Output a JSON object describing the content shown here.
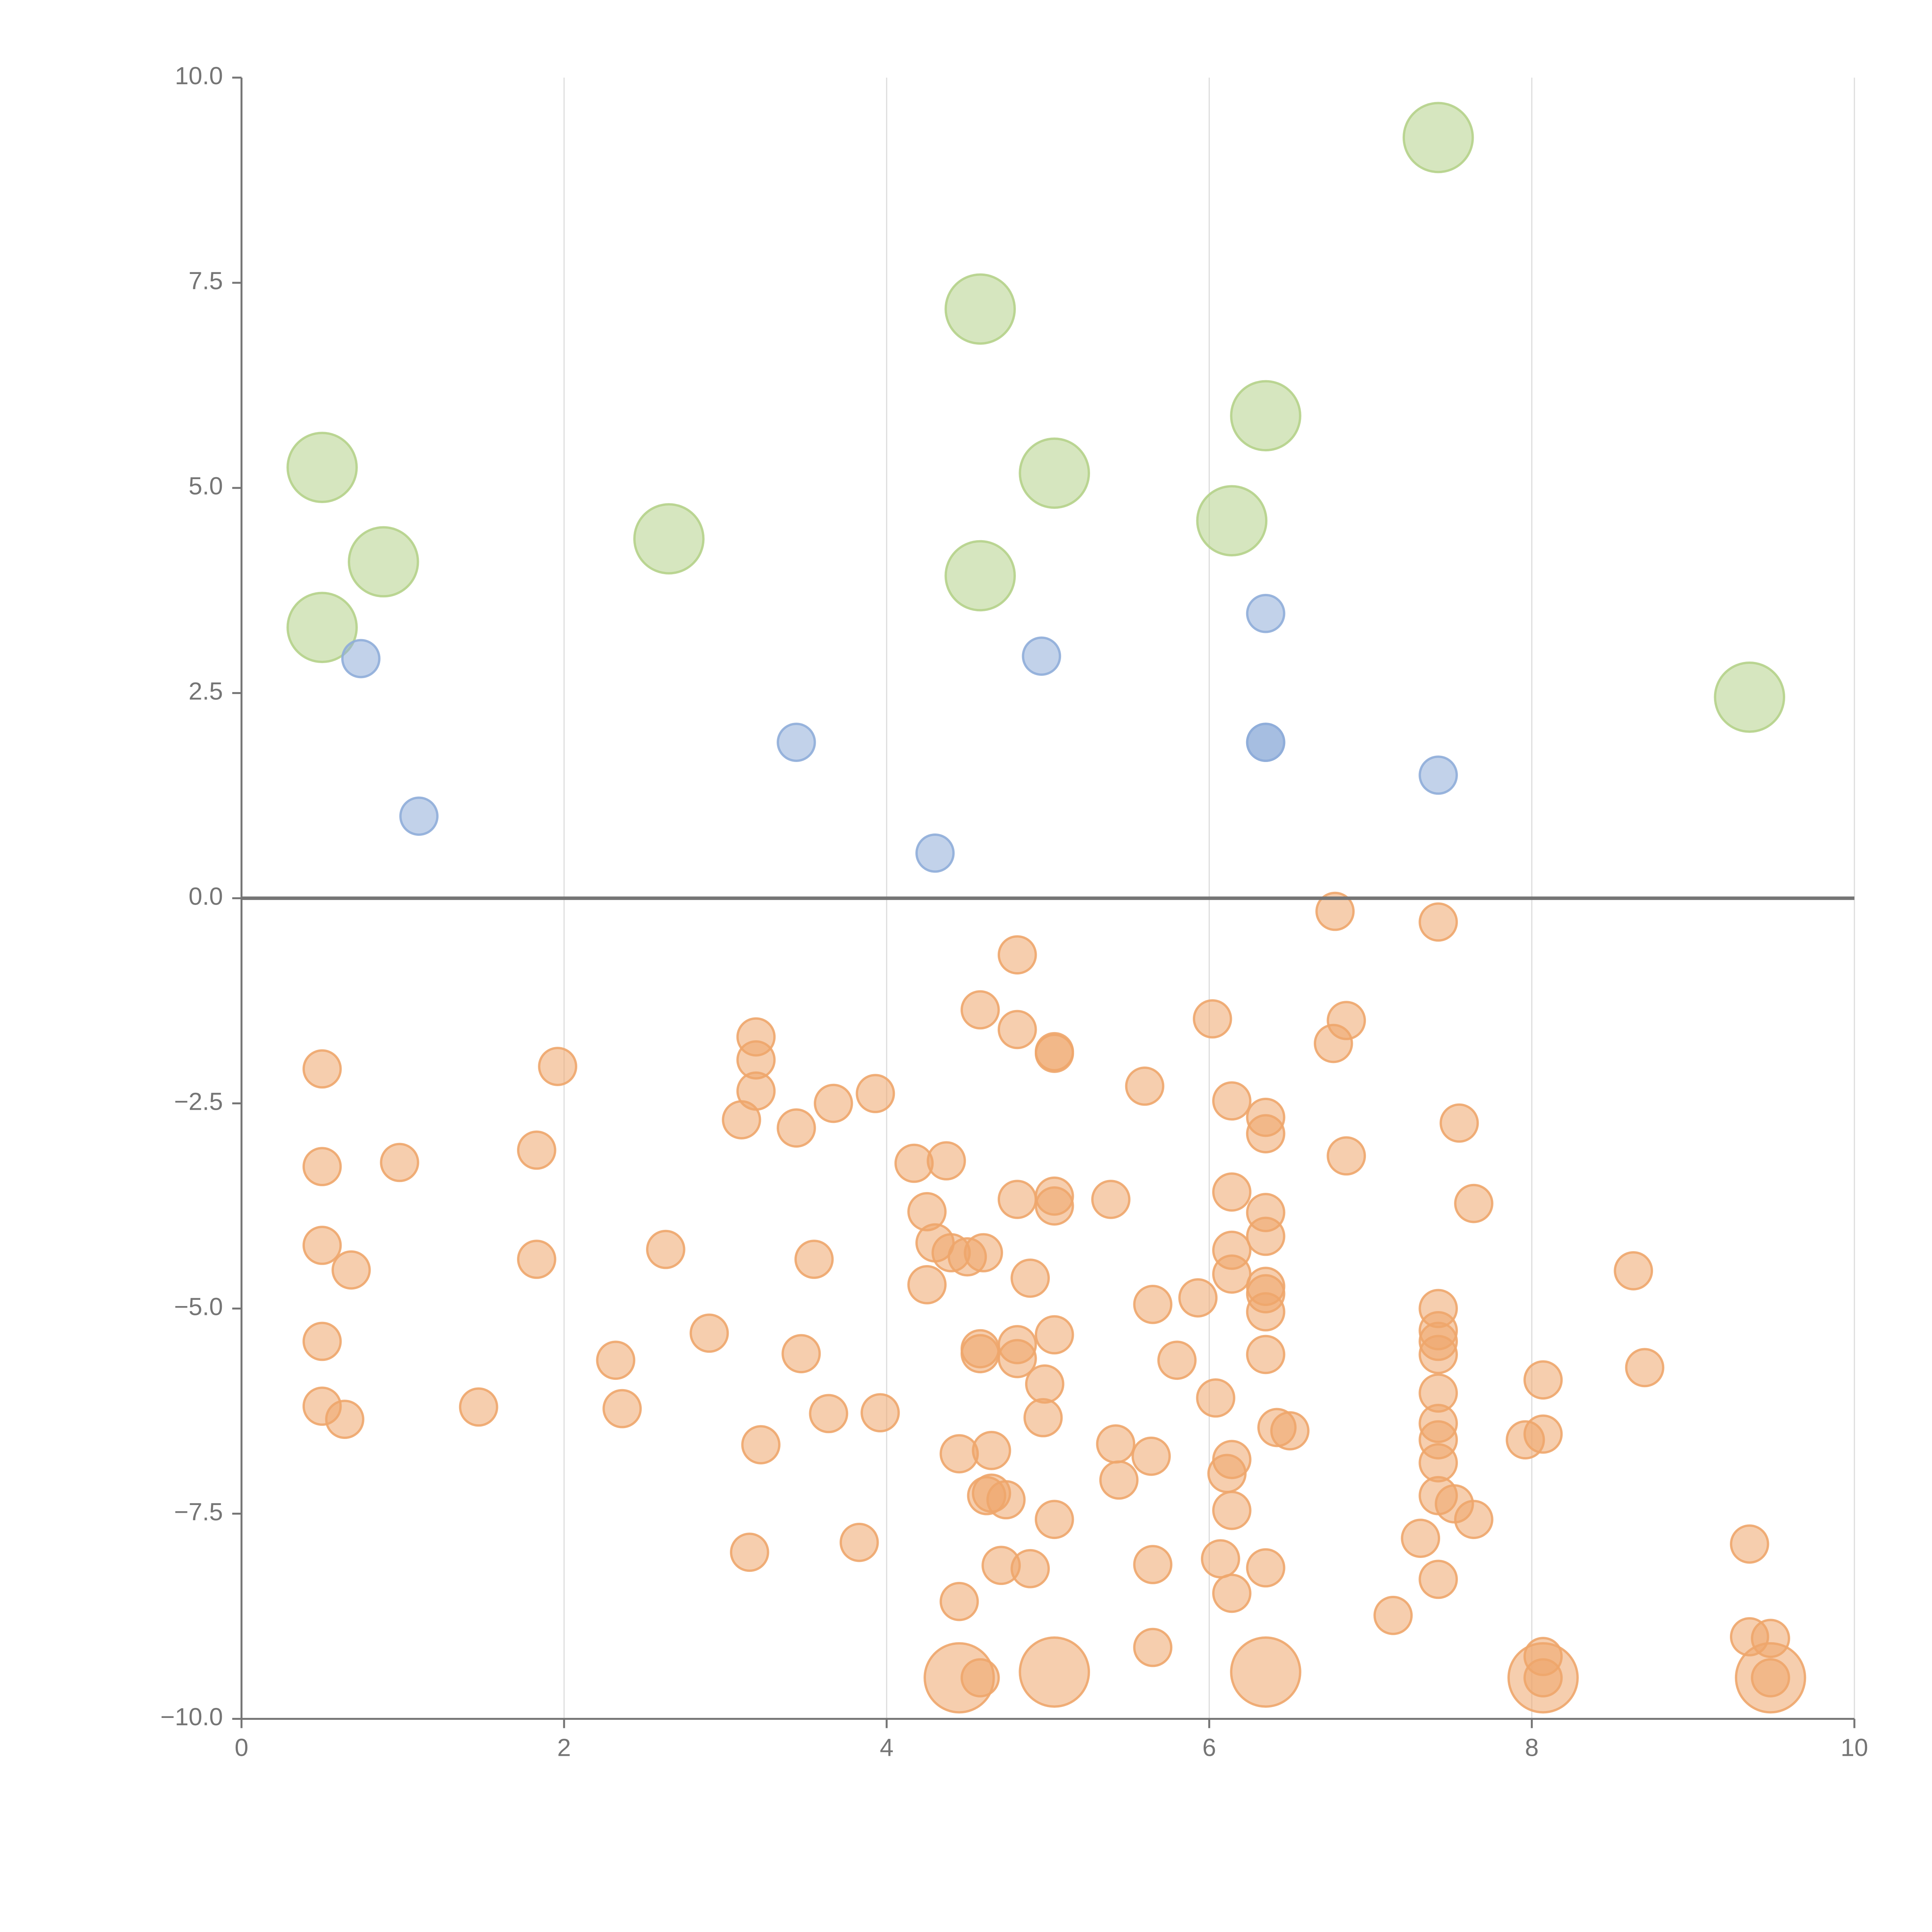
{
  "chart_data": {
    "type": "scatter",
    "title": "",
    "xlabel": "",
    "ylabel": "",
    "xlim": [
      0,
      10
    ],
    "ylim": [
      -10,
      10
    ],
    "x_ticks": [
      0,
      2,
      4,
      6,
      8,
      10
    ],
    "y_ticks": [
      -10.0,
      -7.5,
      -5.0,
      -2.5,
      0.0,
      2.5,
      5.0,
      7.5,
      10.0
    ],
    "x_tick_labels": [
      "0",
      "2",
      "4",
      "6",
      "8",
      "10"
    ],
    "y_tick_labels": [
      "−10.0",
      "−7.5",
      "−5.0",
      "−2.5",
      "0.0",
      "2.5",
      "5.0",
      "7.5",
      "10.0"
    ],
    "grid": {
      "x": true,
      "y": false
    },
    "zero_line": true,
    "colors": {
      "green": "#b5d18a",
      "blue": "#8fadd9",
      "orange": "#eea66b",
      "axis": "#757575",
      "grid": "#dddddd"
    },
    "series": [
      {
        "color": "green",
        "size": "large",
        "points": [
          [
            0.5,
            5.25
          ],
          [
            0.88,
            4.1
          ],
          [
            0.5,
            3.3
          ],
          [
            2.65,
            4.38
          ],
          [
            4.58,
            7.18
          ],
          [
            4.58,
            3.93
          ],
          [
            5.04,
            5.18
          ],
          [
            6.14,
            4.6
          ],
          [
            6.35,
            5.88
          ],
          [
            7.42,
            9.27
          ],
          [
            9.35,
            2.45
          ]
        ]
      },
      {
        "color": "blue",
        "size": "small",
        "points": [
          [
            0.74,
            2.92
          ],
          [
            1.1,
            1.0
          ],
          [
            3.44,
            1.9
          ],
          [
            4.3,
            0.55
          ],
          [
            4.96,
            2.95
          ],
          [
            6.35,
            3.47
          ],
          [
            6.35,
            1.9
          ],
          [
            6.35,
            1.9
          ],
          [
            7.42,
            1.5
          ]
        ]
      },
      {
        "color": "orange",
        "size": "small",
        "points": [
          [
            0.5,
            -2.08
          ],
          [
            0.5,
            -3.27
          ],
          [
            0.5,
            -4.23
          ],
          [
            0.68,
            -4.53
          ],
          [
            0.5,
            -5.4
          ],
          [
            0.5,
            -6.19
          ],
          [
            0.64,
            -6.35
          ],
          [
            0.98,
            -3.22
          ],
          [
            1.47,
            -6.2
          ],
          [
            1.83,
            -3.07
          ],
          [
            1.83,
            -4.4
          ],
          [
            1.96,
            -2.05
          ],
          [
            2.32,
            -5.63
          ],
          [
            2.36,
            -6.22
          ],
          [
            2.63,
            -4.28
          ],
          [
            2.9,
            -5.3
          ],
          [
            3.1,
            -2.7
          ],
          [
            3.15,
            -7.97
          ],
          [
            3.19,
            -1.69
          ],
          [
            3.19,
            -1.97
          ],
          [
            3.19,
            -2.35
          ],
          [
            3.22,
            -6.66
          ],
          [
            3.44,
            -2.8
          ],
          [
            3.47,
            -5.55
          ],
          [
            3.55,
            -4.4
          ],
          [
            3.64,
            -6.28
          ],
          [
            3.67,
            -2.5
          ],
          [
            3.83,
            -7.85
          ],
          [
            3.93,
            -2.38
          ],
          [
            3.96,
            -6.27
          ],
          [
            4.17,
            -3.23
          ],
          [
            4.25,
            -3.82
          ],
          [
            4.25,
            -4.71
          ],
          [
            4.3,
            -4.2
          ],
          [
            4.37,
            -3.2
          ],
          [
            4.4,
            -4.32
          ],
          [
            4.45,
            -6.77
          ],
          [
            4.5,
            -4.37
          ],
          [
            4.45,
            -8.57
          ],
          [
            4.6,
            -4.32
          ],
          [
            4.58,
            -1.36
          ],
          [
            4.58,
            -5.49
          ],
          [
            4.58,
            -5.55
          ],
          [
            4.65,
            -6.73
          ],
          [
            4.65,
            -7.25
          ],
          [
            4.62,
            -7.28
          ],
          [
            4.74,
            -7.33
          ],
          [
            4.71,
            -8.13
          ],
          [
            4.81,
            -0.69
          ],
          [
            4.81,
            -1.6
          ],
          [
            4.81,
            -3.67
          ],
          [
            4.81,
            -5.44
          ],
          [
            4.81,
            -5.61
          ],
          [
            4.89,
            -4.63
          ],
          [
            4.89,
            -8.17
          ],
          [
            4.98,
            -5.92
          ],
          [
            4.97,
            -6.33
          ],
          [
            5.04,
            -1.89
          ],
          [
            5.04,
            -1.87
          ],
          [
            5.04,
            -3.63
          ],
          [
            5.04,
            -3.75
          ],
          [
            5.04,
            -5.32
          ],
          [
            5.04,
            -7.57
          ],
          [
            5.39,
            -3.67
          ],
          [
            5.42,
            -6.65
          ],
          [
            5.44,
            -7.09
          ],
          [
            5.6,
            -2.29
          ],
          [
            5.64,
            -6.8
          ],
          [
            5.65,
            -4.95
          ],
          [
            5.65,
            -8.12
          ],
          [
            5.65,
            -9.13
          ],
          [
            5.8,
            -5.63
          ],
          [
            5.93,
            -4.87
          ],
          [
            6.02,
            -1.47
          ],
          [
            6.04,
            -6.09
          ],
          [
            6.07,
            -8.05
          ],
          [
            6.11,
            -7.01
          ],
          [
            6.14,
            -2.47
          ],
          [
            6.14,
            -3.58
          ],
          [
            6.14,
            -4.29
          ],
          [
            6.14,
            -4.58
          ],
          [
            6.14,
            -6.84
          ],
          [
            6.14,
            -7.46
          ],
          [
            6.14,
            -8.47
          ],
          [
            6.35,
            -2.67
          ],
          [
            6.35,
            -2.87
          ],
          [
            6.35,
            -3.83
          ],
          [
            6.35,
            -4.12
          ],
          [
            6.35,
            -4.73
          ],
          [
            6.35,
            -4.82
          ],
          [
            6.35,
            -5.04
          ],
          [
            6.35,
            -5.56
          ],
          [
            6.35,
            -8.16
          ],
          [
            6.42,
            -6.45
          ],
          [
            6.5,
            -6.49
          ],
          [
            6.78,
            -0.16
          ],
          [
            6.77,
            -1.77
          ],
          [
            6.85,
            -1.49
          ],
          [
            6.85,
            -3.14
          ],
          [
            7.14,
            -8.74
          ],
          [
            7.31,
            -7.8
          ],
          [
            7.42,
            -0.29
          ],
          [
            7.42,
            -5.0
          ],
          [
            7.42,
            -5.27
          ],
          [
            7.42,
            -5.4
          ],
          [
            7.42,
            -5.56
          ],
          [
            7.42,
            -6.03
          ],
          [
            7.42,
            -6.4
          ],
          [
            7.42,
            -6.6
          ],
          [
            7.42,
            -6.88
          ],
          [
            7.42,
            -7.28
          ],
          [
            7.42,
            -8.3
          ],
          [
            7.52,
            -7.38
          ],
          [
            7.55,
            -2.74
          ],
          [
            7.64,
            -3.72
          ],
          [
            7.64,
            -7.57
          ],
          [
            7.96,
            -6.6
          ],
          [
            8.07,
            -5.87
          ],
          [
            8.07,
            -6.53
          ],
          [
            8.07,
            -9.24
          ],
          [
            8.07,
            -9.5
          ],
          [
            8.63,
            -4.54
          ],
          [
            8.7,
            -5.72
          ],
          [
            9.35,
            -7.87
          ],
          [
            9.35,
            -9.0
          ],
          [
            9.48,
            -9.02
          ],
          [
            9.48,
            -9.5
          ],
          [
            4.58,
            -9.5
          ]
        ]
      },
      {
        "color": "orange",
        "size": "large",
        "points": [
          [
            4.45,
            -9.5
          ],
          [
            5.04,
            -9.43
          ],
          [
            6.35,
            -9.43
          ],
          [
            8.07,
            -9.5
          ],
          [
            9.48,
            -9.5
          ]
        ]
      }
    ]
  }
}
